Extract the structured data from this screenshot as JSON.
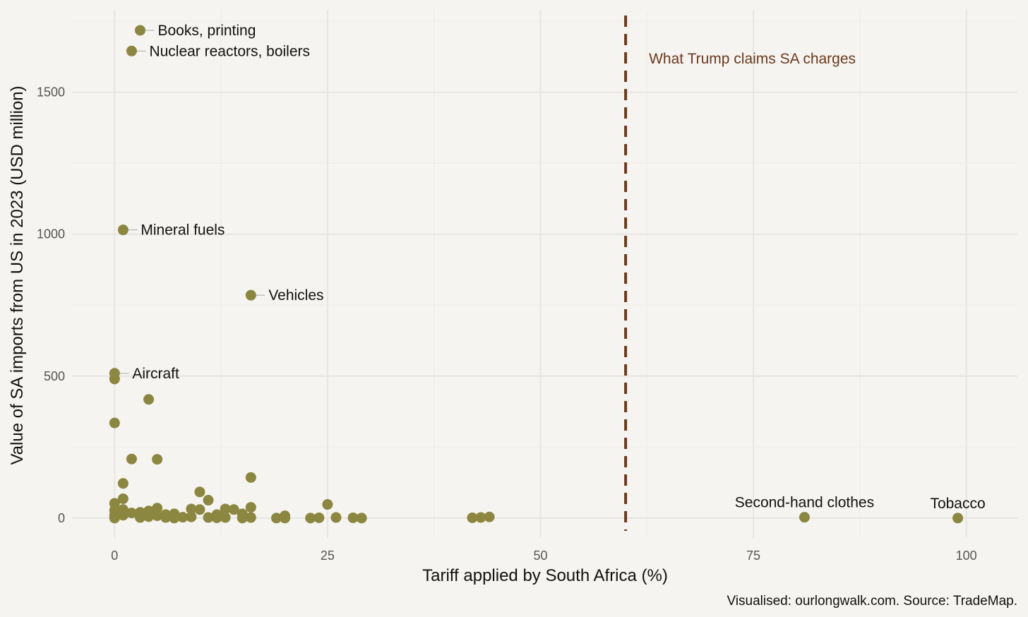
{
  "chart_data": {
    "type": "scatter",
    "xlabel": "Tariff applied by South Africa (%)",
    "ylabel": "Value of SA imports from US in 2023 (USD million)",
    "caption": "Visualised: ourlongwalk.com. Source: TradeMap.",
    "xlim": [
      -5,
      106
    ],
    "ylim": [
      -70,
      1790
    ],
    "x_ticks": [
      0,
      25,
      50,
      75,
      100
    ],
    "y_ticks": [
      0,
      500,
      1000,
      1500
    ],
    "grid": true,
    "point_color": "#8b8640",
    "reference_line": {
      "x": 60,
      "label": "What Trump claims SA charges",
      "color": "#6b3a1e",
      "style": "dashed"
    },
    "labeled_points": [
      {
        "x": 3,
        "y": 1718,
        "label": "Books, printing",
        "label_side": "right"
      },
      {
        "x": 2,
        "y": 1645,
        "label": "Nuclear reactors, boilers",
        "label_side": "right"
      },
      {
        "x": 1,
        "y": 1015,
        "label": "Mineral fuels",
        "label_side": "right"
      },
      {
        "x": 16,
        "y": 785,
        "label": "Vehicles",
        "label_side": "right"
      },
      {
        "x": 0,
        "y": 510,
        "label": "Aircraft",
        "label_side": "right"
      },
      {
        "x": 81,
        "y": 3,
        "label": "Second-hand clothes",
        "label_side": "above"
      },
      {
        "x": 99,
        "y": 0,
        "label": "Tobacco",
        "label_side": "above"
      }
    ],
    "points": [
      [
        0,
        490
      ],
      [
        0,
        335
      ],
      [
        4,
        418
      ],
      [
        2,
        208
      ],
      [
        5,
        207
      ],
      [
        1,
        122
      ],
      [
        16,
        143
      ],
      [
        10,
        92
      ],
      [
        11,
        63
      ],
      [
        0,
        52
      ],
      [
        1,
        68
      ],
      [
        0,
        28
      ],
      [
        0,
        12
      ],
      [
        0,
        5
      ],
      [
        0,
        0
      ],
      [
        1,
        30
      ],
      [
        1,
        10
      ],
      [
        2,
        18
      ],
      [
        3,
        20
      ],
      [
        3,
        2
      ],
      [
        4,
        25
      ],
      [
        4,
        5
      ],
      [
        5,
        35
      ],
      [
        5,
        8
      ],
      [
        6,
        12
      ],
      [
        6,
        2
      ],
      [
        7,
        15
      ],
      [
        7,
        0
      ],
      [
        8,
        3
      ],
      [
        9,
        32
      ],
      [
        9,
        4
      ],
      [
        10,
        30
      ],
      [
        11,
        2
      ],
      [
        12,
        12
      ],
      [
        12,
        1
      ],
      [
        13,
        32
      ],
      [
        13,
        2
      ],
      [
        14,
        30
      ],
      [
        15,
        15
      ],
      [
        15,
        0
      ],
      [
        16,
        38
      ],
      [
        16,
        2
      ],
      [
        19,
        0
      ],
      [
        20,
        8
      ],
      [
        20,
        0
      ],
      [
        23,
        0
      ],
      [
        24,
        1
      ],
      [
        25,
        48
      ],
      [
        26,
        2
      ],
      [
        28,
        1
      ],
      [
        29,
        0
      ],
      [
        42,
        1
      ],
      [
        43,
        2
      ],
      [
        44,
        4
      ]
    ]
  }
}
